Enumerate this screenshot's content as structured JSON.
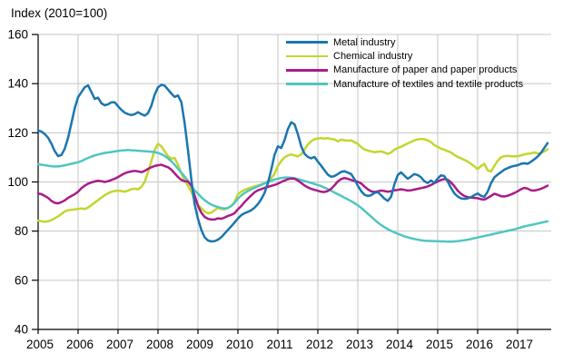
{
  "title": "Index (2010=100)",
  "chart_data": {
    "type": "line",
    "title": "Index (2010=100)",
    "frequency": "monthly",
    "grid": true,
    "legend_position": "top-right-inside",
    "colors": {
      "axis": "#000000",
      "gridline": "#c6c6c6",
      "background": "#ffffff"
    },
    "x_axis": {
      "start_year": 2005,
      "points_per_year": 12,
      "tick_labels": [
        "2005",
        "2006",
        "2007",
        "2008",
        "2009",
        "2010",
        "2011",
        "2012",
        "2013",
        "2014",
        "2015",
        "2016",
        "2017"
      ]
    },
    "y_axis": {
      "min": 40,
      "max": 160,
      "tick_step": 20,
      "tick_labels": [
        "40",
        "60",
        "80",
        "100",
        "120",
        "140",
        "160"
      ]
    },
    "series": [
      {
        "name": "Metal industry",
        "color": "#1a76b0",
        "values": [
          121,
          120.5,
          119.5,
          118,
          115.5,
          112.5,
          110.5,
          111,
          113.5,
          118,
          124,
          130,
          134.5,
          136.5,
          138.5,
          139.3,
          136.5,
          133.8,
          134.3,
          132,
          131.2,
          131.6,
          132.4,
          132.4,
          130.8,
          129.3,
          128.2,
          127.6,
          127.2,
          127.6,
          128.4,
          127.6,
          127,
          128,
          131,
          135.5,
          138.5,
          139.5,
          139.2,
          137.6,
          136,
          134.6,
          135.2,
          132.5,
          124,
          113,
          101,
          91,
          85,
          80.5,
          77.5,
          76.2,
          75.8,
          75.9,
          76.5,
          77.5,
          79,
          80.5,
          82,
          83.5,
          85.2,
          86.5,
          87.3,
          87.8,
          88.5,
          89.5,
          91,
          93,
          95.5,
          99.5,
          105,
          111,
          114.5,
          113.8,
          117,
          121.5,
          124.3,
          123.5,
          119.5,
          114.5,
          111.5,
          110.2,
          109.6,
          110.2,
          108.3,
          106.6,
          104.8,
          103,
          102.1,
          102.4,
          103.2,
          104.1,
          104.4,
          103.8,
          103.2,
          101.2,
          98.5,
          96.3,
          94.8,
          94.3,
          94.6,
          95.5,
          95.9,
          94.6,
          93.2,
          92.3,
          94,
          99,
          102.8,
          103.9,
          102.6,
          101.3,
          102.2,
          103.2,
          102.8,
          101.9,
          100.3,
          99.6,
          100.6,
          99.6,
          101.4,
          102.7,
          102.4,
          100.2,
          97.6,
          95.4,
          94.1,
          93.3,
          93.1,
          93.3,
          93.8,
          94.6,
          95.3,
          94.4,
          93.9,
          96,
          99.5,
          101.8,
          103,
          104,
          105,
          105.6,
          106.2,
          106.5,
          106.8,
          107.4,
          107.6,
          107.4,
          108.2,
          109.2,
          110.3,
          111.8,
          113.8,
          115.8
        ]
      },
      {
        "name": "Chemical industry",
        "color": "#c3d62e",
        "values": [
          84.3,
          84,
          83.8,
          84,
          84.5,
          85.2,
          86,
          87,
          88,
          88.5,
          88.7,
          88.8,
          89,
          89.2,
          89,
          89.6,
          90.6,
          91.6,
          92.6,
          93.6,
          94.6,
          95.4,
          96,
          96.3,
          96.5,
          96.3,
          96,
          96.5,
          97,
          97.3,
          97,
          98,
          100,
          104,
          108.5,
          113,
          115.5,
          114.5,
          112.5,
          110.5,
          109.5,
          109.8,
          107,
          103.5,
          100.5,
          98.5,
          96,
          93,
          90.7,
          89.3,
          88,
          87.3,
          87.5,
          88.5,
          89.4,
          89,
          88.9,
          89.4,
          90.2,
          91.8,
          95,
          96,
          96.8,
          97.3,
          97.8,
          98.2,
          98.6,
          99,
          99.5,
          100.3,
          101.5,
          103.3,
          106.5,
          108.5,
          110,
          110.8,
          111.2,
          110.8,
          110.4,
          111.2,
          113.2,
          115.2,
          116.6,
          117.4,
          117.7,
          117.8,
          117.6,
          117.8,
          117.5,
          117.3,
          116.5,
          117.2,
          117,
          116.8,
          116.9,
          116.2,
          115.5,
          114.2,
          113.2,
          112.8,
          112.4,
          112.1,
          112.3,
          112.4,
          112,
          111.4,
          112,
          113.1,
          113.8,
          114.3,
          115,
          115.7,
          116.3,
          116.9,
          117.3,
          117.5,
          117.4,
          116.9,
          116.2,
          115,
          114.3,
          113.5,
          113.1,
          112.5,
          112,
          111,
          110.2,
          109.6,
          109,
          108.3,
          107.4,
          106.4,
          105.2,
          106.5,
          107.4,
          104.8,
          104.2,
          106.5,
          108.6,
          110,
          110.5,
          110.6,
          110.5,
          110.4,
          110.5,
          110.8,
          111.2,
          111.5,
          111.6,
          112,
          111.6,
          111.8,
          112.4,
          113.3
        ]
      },
      {
        "name": "Manufacture of paper and paper products",
        "color": "#aa1b8a",
        "values": [
          95.3,
          95,
          94.3,
          93.5,
          92.3,
          91.5,
          91.3,
          91.8,
          92.5,
          93.5,
          94.3,
          95,
          96,
          97.5,
          98.5,
          99.3,
          99.8,
          100.2,
          100.5,
          100.3,
          100,
          100.3,
          100.8,
          101.3,
          102,
          102.8,
          103.5,
          104,
          104.3,
          104.5,
          104.3,
          104,
          104.5,
          105.3,
          106,
          106.5,
          106.8,
          107,
          106.5,
          106,
          105,
          103.5,
          102,
          100.8,
          100.3,
          100.2,
          98.5,
          94.5,
          90.3,
          87.5,
          85.8,
          85,
          84.7,
          84.7,
          85.2,
          85,
          85.5,
          86.2,
          86.6,
          87.3,
          88.9,
          90.2,
          91.8,
          93.2,
          94.5,
          95.8,
          96.6,
          97.1,
          97.6,
          98,
          98.4,
          98.8,
          99.3,
          100,
          100.6,
          101.1,
          101.4,
          101.3,
          100.6,
          99.6,
          98.6,
          97.8,
          97.2,
          96.8,
          96.4,
          96,
          95.9,
          96.3,
          97.2,
          98.6,
          100.2,
          101.2,
          101.6,
          101.3,
          100.8,
          100.4,
          100.1,
          99.4,
          98.2,
          97,
          96.2,
          95.9,
          96.2,
          96.5,
          96.3,
          96,
          96.2,
          96.6,
          96.8,
          97,
          96.8,
          96.5,
          96.6,
          96.9,
          97.2,
          97.5,
          97.8,
          98.2,
          98.8,
          99.5,
          100.2,
          100.8,
          101.2,
          100.9,
          99.8,
          98.3,
          96.5,
          95.2,
          94.3,
          93.8,
          93.6,
          93.5,
          93.4,
          93,
          92.8,
          93.5,
          94.3,
          95.2,
          94.8,
          94.2,
          94.1,
          94.4,
          94.9,
          95.5,
          96.2,
          97,
          97.6,
          97.3,
          96.6,
          96.5,
          96.8,
          97.2,
          97.8,
          98.5
        ]
      },
      {
        "name": "Manufacture of textiles and textile products",
        "color": "#4fc6c0",
        "values": [
          107.2,
          107,
          106.8,
          106.6,
          106.4,
          106.3,
          106.3,
          106.5,
          106.8,
          107.1,
          107.4,
          107.7,
          108,
          108.5,
          109.2,
          109.8,
          110.3,
          110.8,
          111.2,
          111.5,
          111.8,
          112,
          112.2,
          112.4,
          112.6,
          112.8,
          112.9,
          113,
          112.9,
          112.8,
          112.7,
          112.6,
          112.5,
          112.4,
          112.3,
          112.2,
          111.8,
          111.3,
          110.6,
          109.6,
          108.4,
          107,
          105.4,
          103.8,
          102.2,
          100.4,
          98.4,
          96.6,
          95.2,
          93.8,
          92.6,
          91.6,
          90.8,
          90.2,
          89.8,
          89.4,
          89.2,
          89.4,
          90.2,
          91.5,
          93.2,
          94.5,
          95.5,
          96.3,
          97,
          97.6,
          98.2,
          98.8,
          99.4,
          100,
          100.5,
          101,
          101.3,
          101.6,
          101.8,
          101.8,
          101.7,
          101.5,
          101.2,
          100.8,
          100.4,
          100,
          99.6,
          99.2,
          98.8,
          98.3,
          97.7,
          97.1,
          96.4,
          95.7,
          95,
          94.3,
          93.6,
          92.9,
          92.2,
          91.4,
          90.5,
          89.5,
          88.3,
          87.1,
          85.9,
          84.7,
          83.5,
          82.5,
          81.6,
          80.8,
          80.1,
          79.5,
          78.9,
          78.4,
          77.9,
          77.5,
          77.1,
          76.8,
          76.5,
          76.3,
          76.1,
          76,
          76,
          75.9,
          75.9,
          75.8,
          75.8,
          75.7,
          75.7,
          75.8,
          75.9,
          76.1,
          76.3,
          76.5,
          76.8,
          77.1,
          77.4,
          77.7,
          78,
          78.3,
          78.6,
          78.9,
          79.2,
          79.5,
          79.8,
          80.1,
          80.4,
          80.7,
          81.1,
          81.5,
          81.9,
          82.2,
          82.5,
          82.8,
          83.1,
          83.4,
          83.7,
          84
        ]
      }
    ]
  }
}
